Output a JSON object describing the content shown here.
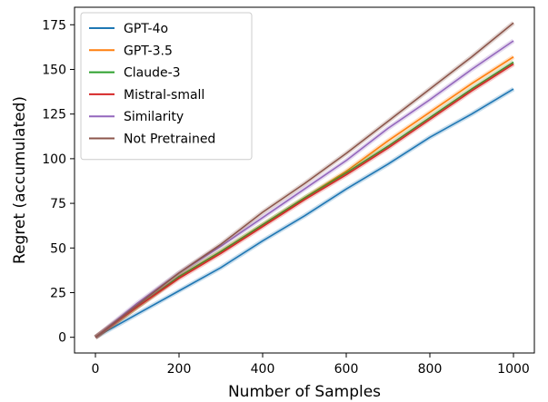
{
  "chart_data": {
    "type": "line",
    "title": "",
    "xlabel": "Number of Samples",
    "ylabel": "Regret (accumulated)",
    "xlim": [
      -50,
      1050
    ],
    "ylim": [
      -8.8,
      184.8
    ],
    "xticks": [
      0,
      200,
      400,
      600,
      800,
      1000
    ],
    "yticks": [
      0,
      25,
      50,
      75,
      100,
      125,
      150,
      175
    ],
    "grid": false,
    "legend_position": "top-left",
    "x": [
      0,
      100,
      200,
      300,
      400,
      500,
      600,
      700,
      800,
      900,
      1000
    ],
    "series": [
      {
        "name": "GPT-4o",
        "color": "#1f77b4",
        "values": [
          0,
          13,
          26,
          39,
          54,
          68,
          83,
          97,
          112,
          125,
          139
        ]
      },
      {
        "name": "GPT-3.5",
        "color": "#ff7f0e",
        "values": [
          0,
          17,
          34,
          48,
          63,
          78,
          93,
          110,
          126,
          142,
          157
        ]
      },
      {
        "name": "Claude-3",
        "color": "#2ca02c",
        "values": [
          0,
          17,
          34,
          48,
          63,
          78,
          92,
          107,
          123,
          139,
          154
        ]
      },
      {
        "name": "Mistral-small",
        "color": "#d62728",
        "values": [
          0,
          17,
          33,
          47,
          62,
          77,
          91,
          106,
          122,
          138,
          153
        ]
      },
      {
        "name": "Similarity",
        "color": "#9467bd",
        "values": [
          0,
          19,
          36,
          51,
          67,
          83,
          99,
          117,
          133,
          150,
          166
        ]
      },
      {
        "name": "Not Pretrained",
        "color": "#8c564b",
        "values": [
          0,
          18,
          36,
          52,
          70,
          86,
          103,
          121,
          139,
          157,
          176
        ]
      }
    ]
  }
}
